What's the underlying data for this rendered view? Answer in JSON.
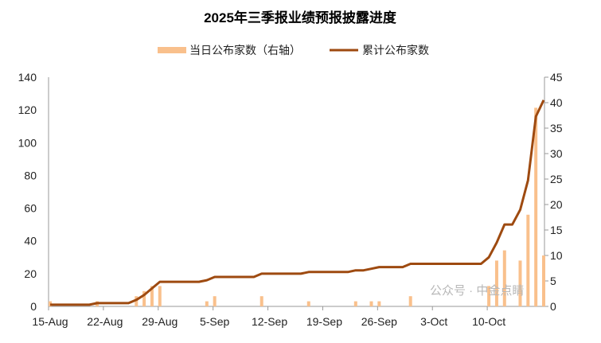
{
  "chart_data": {
    "type": "bar+line",
    "title": "2025年三季报业绩预报披露进度",
    "legend_position": "top",
    "grid": false,
    "x": [
      "15-Aug",
      "16-Aug",
      "17-Aug",
      "18-Aug",
      "19-Aug",
      "20-Aug",
      "21-Aug",
      "22-Aug",
      "23-Aug",
      "24-Aug",
      "25-Aug",
      "26-Aug",
      "27-Aug",
      "28-Aug",
      "29-Aug",
      "30-Aug",
      "31-Aug",
      "1-Sep",
      "2-Sep",
      "3-Sep",
      "4-Sep",
      "5-Sep",
      "6-Sep",
      "7-Sep",
      "8-Sep",
      "9-Sep",
      "10-Sep",
      "11-Sep",
      "12-Sep",
      "13-Sep",
      "14-Sep",
      "15-Sep",
      "16-Sep",
      "17-Sep",
      "18-Sep",
      "19-Sep",
      "20-Sep",
      "21-Sep",
      "22-Sep",
      "23-Sep",
      "24-Sep",
      "25-Sep",
      "26-Sep",
      "27-Sep",
      "28-Sep",
      "29-Sep",
      "30-Sep",
      "1-Oct",
      "2-Oct",
      "3-Oct",
      "4-Oct",
      "5-Oct",
      "6-Oct",
      "7-Oct",
      "8-Oct",
      "9-Oct",
      "10-Oct",
      "11-Oct",
      "12-Oct",
      "13-Oct",
      "14-Oct",
      "15-Oct",
      "16-Oct",
      "17-Oct"
    ],
    "x_tick_labels": [
      "15-Aug",
      "22-Aug",
      "29-Aug",
      "5-Sep",
      "12-Sep",
      "19-Sep",
      "26-Sep",
      "3-Oct",
      "10-Oct"
    ],
    "y_left": {
      "range": [
        0,
        140
      ],
      "ticks": [
        0,
        20,
        40,
        60,
        80,
        100,
        120,
        140
      ]
    },
    "y_right": {
      "range": [
        0,
        45
      ],
      "ticks": [
        0,
        5,
        10,
        15,
        20,
        25,
        30,
        35,
        40,
        45
      ]
    },
    "series": [
      {
        "name": "当日公布家数（右轴）",
        "type": "bar",
        "axis": "right",
        "color": "#F9C08C",
        "values": [
          1,
          0,
          0,
          0,
          0,
          0,
          1,
          0,
          0,
          0,
          0,
          2,
          3,
          4,
          4,
          0,
          0,
          0,
          0,
          0,
          1,
          2,
          0,
          0,
          0,
          0,
          0,
          2,
          0,
          0,
          0,
          0,
          0,
          1,
          0,
          0,
          0,
          0,
          0,
          1,
          0,
          1,
          1,
          0,
          0,
          0,
          2,
          0,
          0,
          0,
          0,
          0,
          0,
          0,
          0,
          0,
          4,
          9,
          11,
          0,
          9,
          18,
          39,
          10
        ]
      },
      {
        "name": "累计公布家数",
        "type": "line",
        "axis": "left",
        "color": "#9E4A10",
        "values": [
          1,
          1,
          1,
          1,
          1,
          1,
          2,
          2,
          2,
          2,
          2,
          4,
          7,
          11,
          15,
          15,
          15,
          15,
          15,
          15,
          16,
          18,
          18,
          18,
          18,
          18,
          18,
          20,
          20,
          20,
          20,
          20,
          20,
          21,
          21,
          21,
          21,
          21,
          21,
          22,
          22,
          23,
          24,
          24,
          24,
          24,
          26,
          26,
          26,
          26,
          26,
          26,
          26,
          26,
          26,
          26,
          30,
          39,
          50,
          50,
          59,
          77,
          116,
          126
        ]
      }
    ]
  },
  "watermark": "公众号 · 中金点睛"
}
